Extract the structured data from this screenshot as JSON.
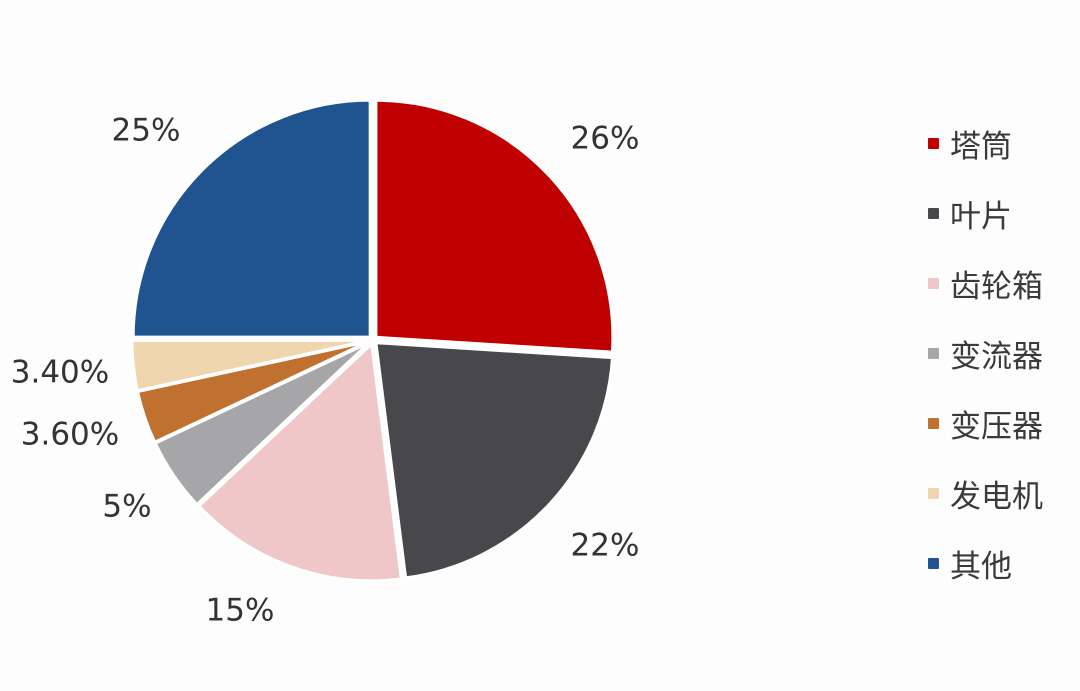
{
  "chart_data": {
    "type": "pie",
    "start_angle": "12 o'clock, clockwise",
    "legend_position": "right",
    "slices": [
      {
        "name": "塔筒",
        "value": 26,
        "label": "26%",
        "color": "#c00000"
      },
      {
        "name": "叶片",
        "value": 22,
        "label": "22%",
        "color": "#48484c"
      },
      {
        "name": "齿轮箱",
        "value": 15,
        "label": "15%",
        "color": "#efc7c8"
      },
      {
        "name": "变流器",
        "value": 5,
        "label": "5%",
        "color": "#a6a6a8"
      },
      {
        "name": "变压器",
        "value": 3.6,
        "label": "3.60%",
        "color": "#c0702f"
      },
      {
        "name": "发电机",
        "value": 3.4,
        "label": "3.40%",
        "color": "#efd6ae"
      },
      {
        "name": "其他",
        "value": 25,
        "label": "25%",
        "color": "#1f5490"
      }
    ]
  }
}
